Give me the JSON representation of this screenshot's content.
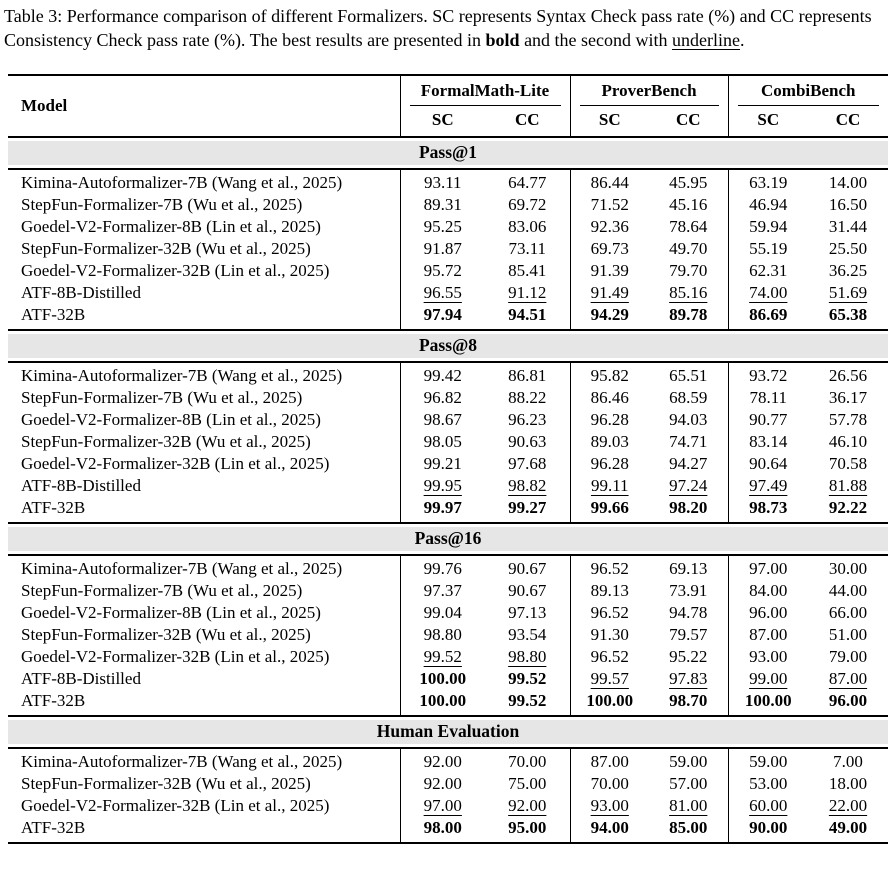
{
  "caption": {
    "lead": "Table 3: ",
    "text_before_bold": "Performance comparison of different Formalizers. SC represents Syntax Check pass rate (%) and CC represents Consistency Check pass rate (%). The best results are presented in ",
    "bold_word": "bold",
    "text_between": " and the second with ",
    "underline_word": "underline",
    "text_after": "."
  },
  "colors": {
    "band_bg": "#e6e6e6",
    "rule": "#000000"
  },
  "table": {
    "model_header": "Model",
    "groups": [
      "FormalMath-Lite",
      "ProverBench",
      "CombiBench"
    ],
    "subheaders": [
      "SC",
      "CC",
      "SC",
      "CC",
      "SC",
      "CC"
    ],
    "sections": [
      {
        "title": "Pass@1",
        "rows": [
          {
            "model": "Kimina-Autoformalizer-7B (Wang et al., 2025)",
            "values": [
              "93.11",
              "64.77",
              "86.44",
              "45.95",
              "63.19",
              "14.00"
            ],
            "styles": [
              "n",
              "n",
              "n",
              "n",
              "n",
              "n"
            ]
          },
          {
            "model": "StepFun-Formalizer-7B (Wu et al., 2025)",
            "values": [
              "89.31",
              "69.72",
              "71.52",
              "45.16",
              "46.94",
              "16.50"
            ],
            "styles": [
              "n",
              "n",
              "n",
              "n",
              "n",
              "n"
            ]
          },
          {
            "model": "Goedel-V2-Formalizer-8B (Lin et al., 2025)",
            "values": [
              "95.25",
              "83.06",
              "92.36",
              "78.64",
              "59.94",
              "31.44"
            ],
            "styles": [
              "n",
              "n",
              "n",
              "n",
              "n",
              "n"
            ]
          },
          {
            "model": "StepFun-Formalizer-32B (Wu et al., 2025)",
            "values": [
              "91.87",
              "73.11",
              "69.73",
              "49.70",
              "55.19",
              "25.50"
            ],
            "styles": [
              "n",
              "n",
              "n",
              "n",
              "n",
              "n"
            ]
          },
          {
            "model": "Goedel-V2-Formalizer-32B (Lin et al., 2025)",
            "values": [
              "95.72",
              "85.41",
              "91.39",
              "79.70",
              "62.31",
              "36.25"
            ],
            "styles": [
              "n",
              "n",
              "n",
              "n",
              "n",
              "n"
            ]
          },
          {
            "model": "ATF-8B-Distilled",
            "values": [
              "96.55",
              "91.12",
              "91.49",
              "85.16",
              "74.00",
              "51.69"
            ],
            "styles": [
              "u",
              "u",
              "u",
              "u",
              "u",
              "u"
            ]
          },
          {
            "model": "ATF-32B",
            "values": [
              "97.94",
              "94.51",
              "94.29",
              "89.78",
              "86.69",
              "65.38"
            ],
            "styles": [
              "b",
              "b",
              "b",
              "b",
              "b",
              "b"
            ]
          }
        ]
      },
      {
        "title": "Pass@8",
        "rows": [
          {
            "model": "Kimina-Autoformalizer-7B (Wang et al., 2025)",
            "values": [
              "99.42",
              "86.81",
              "95.82",
              "65.51",
              "93.72",
              "26.56"
            ],
            "styles": [
              "n",
              "n",
              "n",
              "n",
              "n",
              "n"
            ]
          },
          {
            "model": "StepFun-Formalizer-7B (Wu et al., 2025)",
            "values": [
              "96.82",
              "88.22",
              "86.46",
              "68.59",
              "78.11",
              "36.17"
            ],
            "styles": [
              "n",
              "n",
              "n",
              "n",
              "n",
              "n"
            ]
          },
          {
            "model": "Goedel-V2-Formalizer-8B (Lin et al., 2025)",
            "values": [
              "98.67",
              "96.23",
              "96.28",
              "94.03",
              "90.77",
              "57.78"
            ],
            "styles": [
              "n",
              "n",
              "n",
              "n",
              "n",
              "n"
            ]
          },
          {
            "model": "StepFun-Formalizer-32B (Wu et al., 2025)",
            "values": [
              "98.05",
              "90.63",
              "89.03",
              "74.71",
              "83.14",
              "46.10"
            ],
            "styles": [
              "n",
              "n",
              "n",
              "n",
              "n",
              "n"
            ]
          },
          {
            "model": "Goedel-V2-Formalizer-32B (Lin et al., 2025)",
            "values": [
              "99.21",
              "97.68",
              "96.28",
              "94.27",
              "90.64",
              "70.58"
            ],
            "styles": [
              "n",
              "n",
              "n",
              "n",
              "n",
              "n"
            ]
          },
          {
            "model": "ATF-8B-Distilled",
            "values": [
              "99.95",
              "98.82",
              "99.11",
              "97.24",
              "97.49",
              "81.88"
            ],
            "styles": [
              "u",
              "u",
              "u",
              "u",
              "u",
              "u"
            ]
          },
          {
            "model": "ATF-32B",
            "values": [
              "99.97",
              "99.27",
              "99.66",
              "98.20",
              "98.73",
              "92.22"
            ],
            "styles": [
              "b",
              "b",
              "b",
              "b",
              "b",
              "b"
            ]
          }
        ]
      },
      {
        "title": "Pass@16",
        "rows": [
          {
            "model": "Kimina-Autoformalizer-7B (Wang et al., 2025)",
            "values": [
              "99.76",
              "90.67",
              "96.52",
              "69.13",
              "97.00",
              "30.00"
            ],
            "styles": [
              "n",
              "n",
              "n",
              "n",
              "n",
              "n"
            ]
          },
          {
            "model": "StepFun-Formalizer-7B (Wu et al., 2025)",
            "values": [
              "97.37",
              "90.67",
              "89.13",
              "73.91",
              "84.00",
              "44.00"
            ],
            "styles": [
              "n",
              "n",
              "n",
              "n",
              "n",
              "n"
            ]
          },
          {
            "model": "Goedel-V2-Formalizer-8B (Lin et al., 2025)",
            "values": [
              "99.04",
              "97.13",
              "96.52",
              "94.78",
              "96.00",
              "66.00"
            ],
            "styles": [
              "n",
              "n",
              "n",
              "n",
              "n",
              "n"
            ]
          },
          {
            "model": "StepFun-Formalizer-32B (Wu et al., 2025)",
            "values": [
              "98.80",
              "93.54",
              "91.30",
              "79.57",
              "87.00",
              "51.00"
            ],
            "styles": [
              "n",
              "n",
              "n",
              "n",
              "n",
              "n"
            ]
          },
          {
            "model": "Goedel-V2-Formalizer-32B (Lin et al., 2025)",
            "values": [
              "99.52",
              "98.80",
              "96.52",
              "95.22",
              "93.00",
              "79.00"
            ],
            "styles": [
              "u",
              "u",
              "n",
              "n",
              "n",
              "n"
            ]
          },
          {
            "model": "ATF-8B-Distilled",
            "values": [
              "100.00",
              "99.52",
              "99.57",
              "97.83",
              "99.00",
              "87.00"
            ],
            "styles": [
              "b",
              "b",
              "u",
              "u",
              "u",
              "u"
            ]
          },
          {
            "model": "ATF-32B",
            "values": [
              "100.00",
              "99.52",
              "100.00",
              "98.70",
              "100.00",
              "96.00"
            ],
            "styles": [
              "b",
              "b",
              "b",
              "b",
              "b",
              "b"
            ]
          }
        ]
      },
      {
        "title": "Human Evaluation",
        "rows": [
          {
            "model": "Kimina-Autoformalizer-7B (Wang et al., 2025)",
            "values": [
              "92.00",
              "70.00",
              "87.00",
              "59.00",
              "59.00",
              "7.00"
            ],
            "styles": [
              "n",
              "n",
              "n",
              "n",
              "n",
              "n"
            ]
          },
          {
            "model": "StepFun-Formalizer-32B (Wu et al., 2025)",
            "values": [
              "92.00",
              "75.00",
              "70.00",
              "57.00",
              "53.00",
              "18.00"
            ],
            "styles": [
              "n",
              "n",
              "n",
              "n",
              "n",
              "n"
            ]
          },
          {
            "model": "Goedel-V2-Formalizer-32B (Lin et al., 2025)",
            "values": [
              "97.00",
              "92.00",
              "93.00",
              "81.00",
              "60.00",
              "22.00"
            ],
            "styles": [
              "u",
              "u",
              "u",
              "u",
              "u",
              "u"
            ]
          },
          {
            "model": "ATF-32B",
            "values": [
              "98.00",
              "95.00",
              "94.00",
              "85.00",
              "90.00",
              "49.00"
            ],
            "styles": [
              "b",
              "b",
              "b",
              "b",
              "b",
              "b"
            ]
          }
        ]
      }
    ]
  }
}
